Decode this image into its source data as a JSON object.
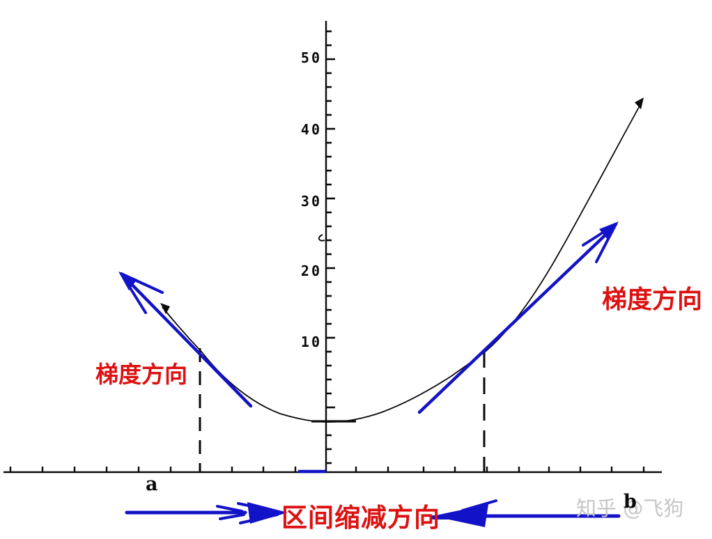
{
  "figure": {
    "colors": {
      "curve_black": "#0a0a0a",
      "arrow_blue": "#1212c8",
      "label_red": "#dd1111",
      "watermark_gray": "#c6c6c6"
    },
    "yaxis": {
      "tick_labels": [
        "50",
        "40",
        "30",
        "20",
        "10"
      ]
    },
    "labels": {
      "gradient_left": "梯度方向",
      "gradient_right": "梯度方向",
      "interval_reduction": "区间缩减方向",
      "endpoint_a": "a",
      "endpoint_b": "b",
      "watermark": "知乎 @飞狗"
    }
  },
  "chart_data": {
    "type": "line",
    "title": "",
    "xlabel": "",
    "ylabel": "",
    "x_axis_labels": [
      "a",
      "b"
    ],
    "y_ticks": [
      10,
      20,
      30,
      40,
      50
    ],
    "ylim": [
      -2,
      55
    ],
    "grid": false,
    "legend": "none",
    "series": [
      {
        "name": "convex function curve",
        "style": "thin black curve with small arrowheads at both ends",
        "approx_points_axis_units": [
          [
            -5.1,
            15
          ],
          [
            -3.9,
            8.5
          ],
          [
            -2,
            2
          ],
          [
            0,
            -1.5
          ],
          [
            1,
            -1.5
          ],
          [
            3,
            2.5
          ],
          [
            4.9,
            8.5
          ],
          [
            7,
            23
          ],
          [
            9.9,
            44
          ]
        ]
      },
      {
        "name": "gradient tangent arrow left",
        "style": "blue arrow tangent at x=a pointing up-left",
        "approx_points_axis_units": [
          [
            -2.3,
            0.8
          ],
          [
            -6.4,
            19.3
          ]
        ]
      },
      {
        "name": "gradient tangent arrow right",
        "style": "blue arrow tangent at x=b pointing up-right",
        "approx_points_axis_units": [
          [
            2.9,
            -0.3
          ],
          [
            9.1,
            26.3
          ]
        ]
      }
    ],
    "annotations": [
      {
        "text": "梯度方向",
        "color": "#dd1111",
        "position": "left of curve"
      },
      {
        "text": "梯度方向",
        "color": "#dd1111",
        "position": "right of curve"
      },
      {
        "text": "区间缩减方向",
        "color": "#dd1111",
        "position": "below x-axis, flanked by inward-pointing blue arrows"
      },
      {
        "text": "a",
        "position": "x-axis below left dashed line"
      },
      {
        "text": "b",
        "position": "x-axis at far right"
      },
      {
        "text": "知乎 @飞狗",
        "color": "#c6c6c6",
        "position": "bottom-right watermark"
      }
    ],
    "notes": "dashed vertical droplines at x=a and x=b from tangent points to x-axis; short blue segment on x-axis under curve minimum"
  }
}
